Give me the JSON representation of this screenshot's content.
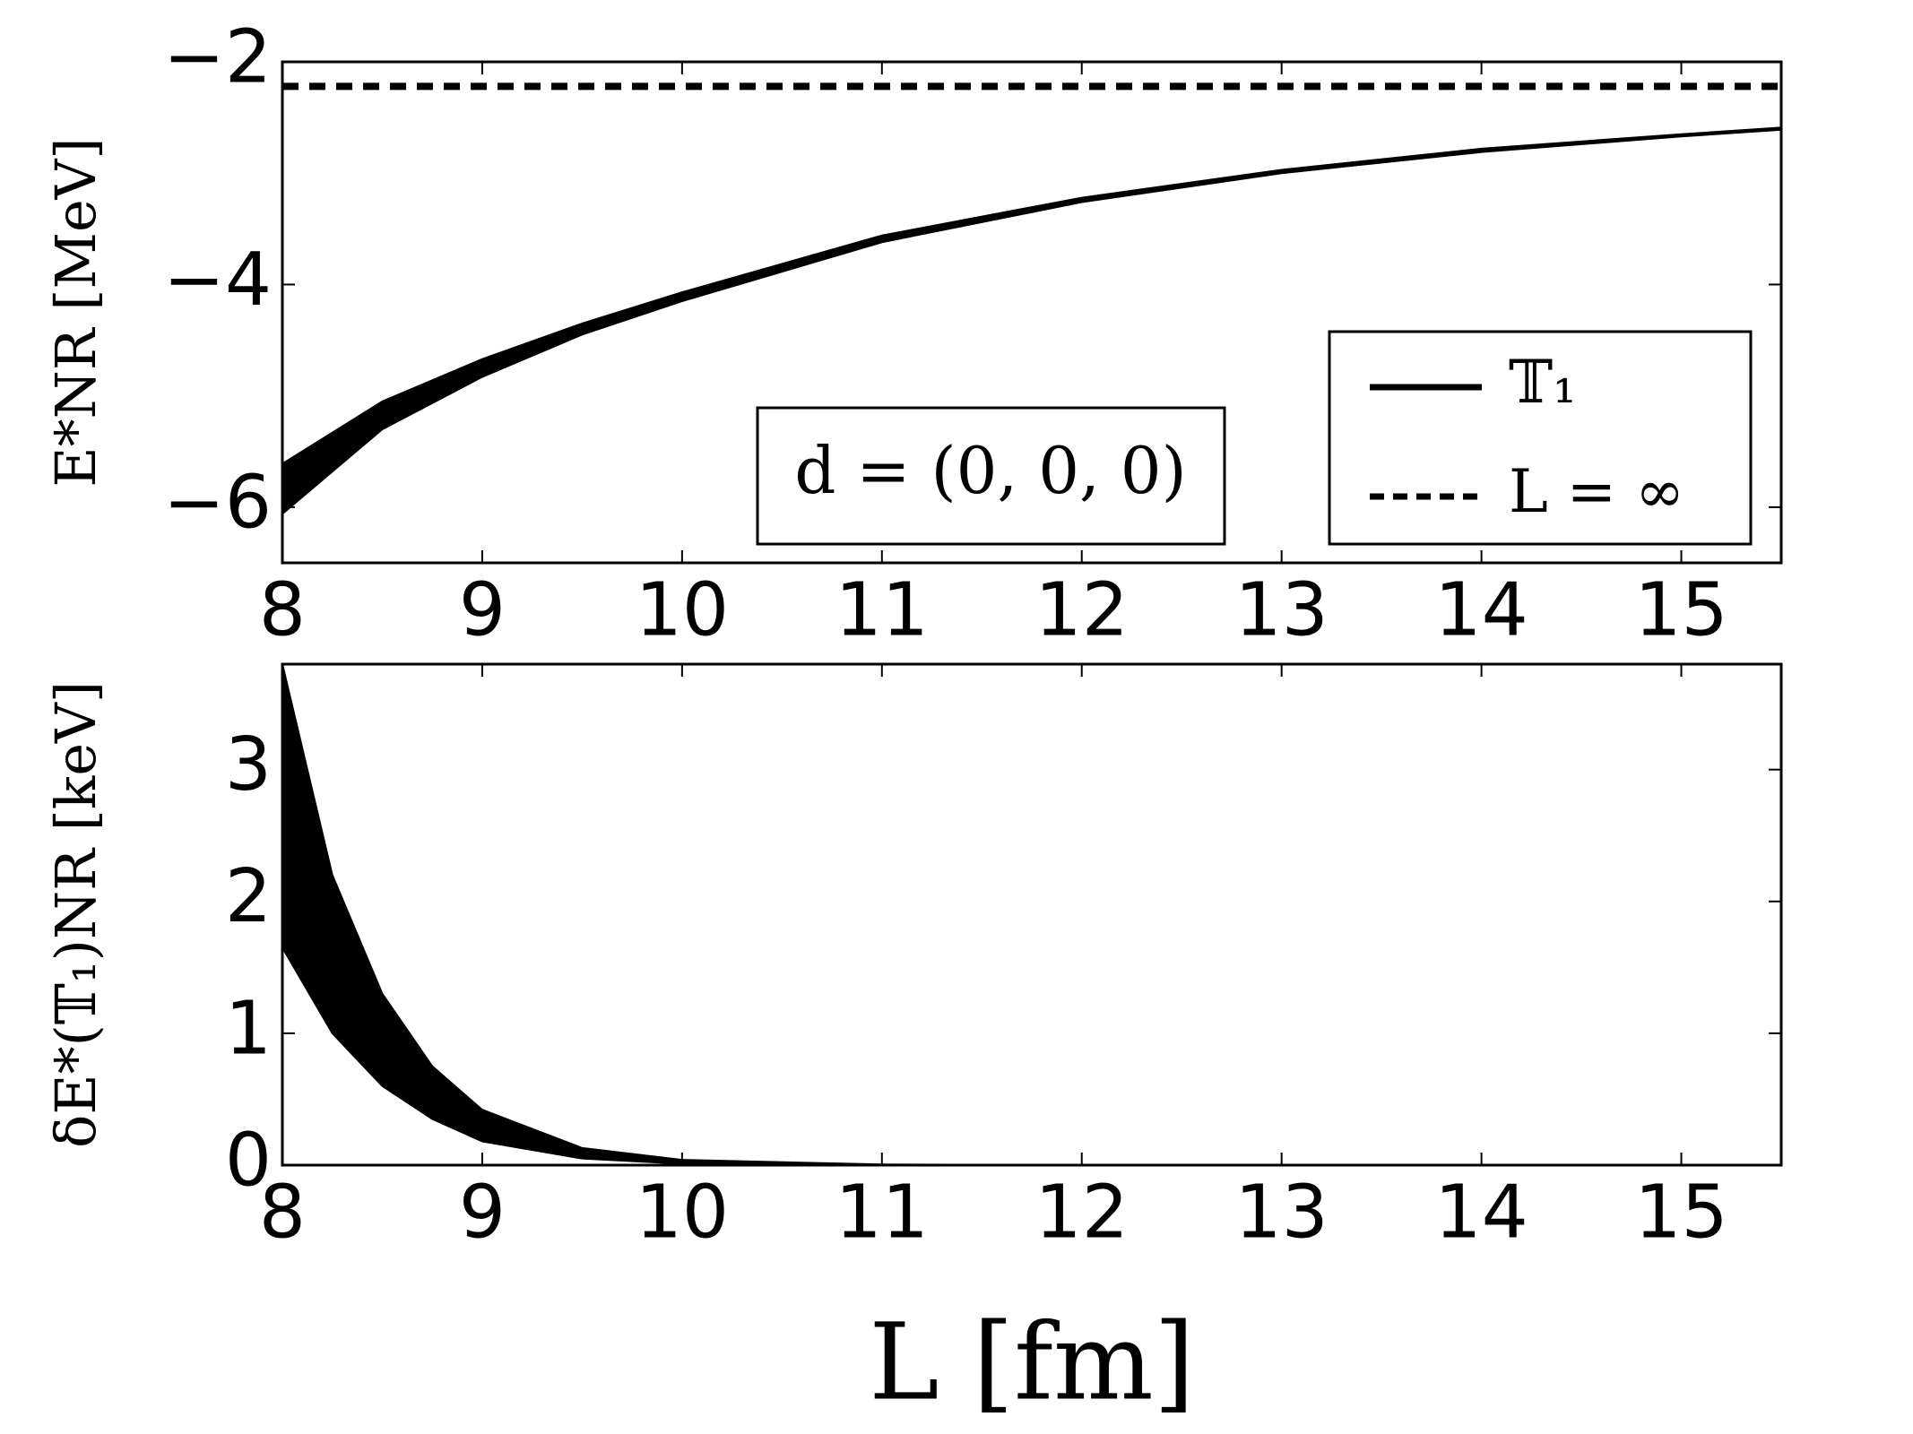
{
  "chart_data": [
    {
      "type": "band",
      "ylabel": "E*NR [MeV]",
      "x": [
        8,
        8.5,
        9,
        9.5,
        10,
        11,
        12,
        13,
        14,
        15,
        15.5
      ],
      "series": [
        {
          "name": "𝕋₁",
          "color": "#000000",
          "kind": "band",
          "lower": [
            -6.06,
            -5.3,
            -4.83,
            -4.45,
            -4.15,
            -3.62,
            -3.26,
            -3.0,
            -2.81,
            -2.67,
            -2.61
          ],
          "upper": [
            -5.61,
            -5.05,
            -4.67,
            -4.35,
            -4.07,
            -3.56,
            -3.22,
            -2.97,
            -2.78,
            -2.65,
            -2.59
          ]
        },
        {
          "name": "L = ∞",
          "color": "#000000",
          "kind": "dashed",
          "values": [
            -2.22,
            -2.22,
            -2.22,
            -2.22,
            -2.22,
            -2.22,
            -2.22,
            -2.22,
            -2.22,
            -2.22,
            -2.22
          ]
        }
      ],
      "annotation": "d = (0, 0, 0)",
      "xlim": [
        8,
        15.5
      ],
      "ylim": [
        -6.5,
        -2
      ],
      "xticks": [
        8,
        9,
        10,
        11,
        12,
        13,
        14,
        15
      ],
      "yticks": [
        {
          "value": -2,
          "label": "−2"
        },
        {
          "value": -4,
          "label": "−4"
        },
        {
          "value": -6,
          "label": "−6"
        }
      ],
      "legend": "lower right"
    },
    {
      "type": "band",
      "ylabel": "δE*(𝕋₁)NR [keV]",
      "xlabel": "L [fm]",
      "x": [
        8,
        8.25,
        8.5,
        8.75,
        9,
        9.5,
        10,
        11,
        12,
        13,
        14,
        15,
        15.5
      ],
      "series": [
        {
          "color": "#000000",
          "kind": "band",
          "lower": [
            1.65,
            1.0,
            0.6,
            0.35,
            0.18,
            0.05,
            0.01,
            0,
            0,
            0,
            0,
            0,
            0
          ],
          "upper": [
            3.8,
            2.2,
            1.3,
            0.75,
            0.42,
            0.13,
            0.04,
            0.005,
            0,
            0,
            0,
            0,
            0
          ]
        }
      ],
      "xlim": [
        8,
        15.5
      ],
      "ylim": [
        0,
        3.8
      ],
      "xticks": [
        8,
        9,
        10,
        11,
        12,
        13,
        14,
        15
      ],
      "yticks": [
        0,
        1,
        2,
        3
      ]
    }
  ]
}
